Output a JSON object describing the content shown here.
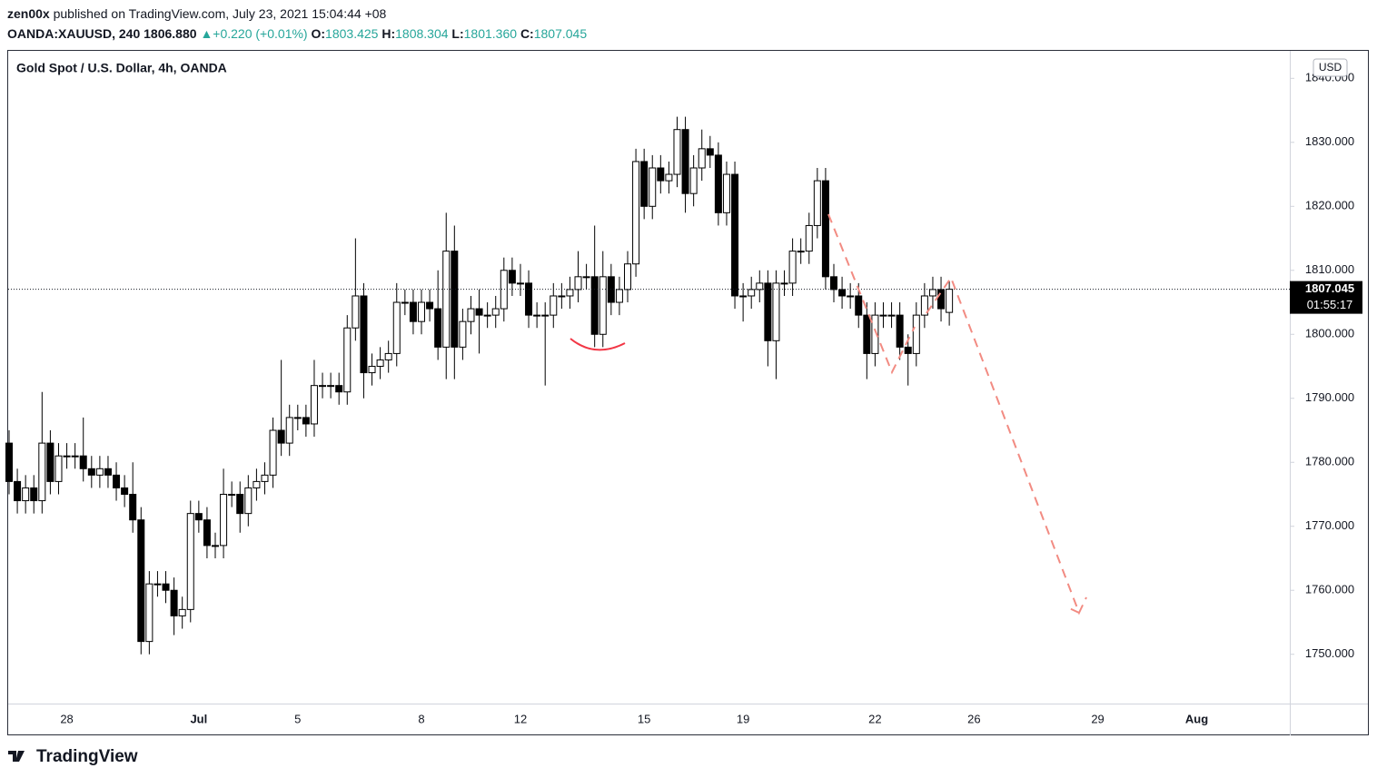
{
  "header": {
    "author": "zen00x",
    "published": "published on TradingView.com, July 23, 2021 15:04:44 +08",
    "symbol": "OANDA:XAUUSD, 240",
    "last": "1806.880",
    "change": "+0.220 (+0.01%)",
    "o_label": "O:",
    "o": "1803.425",
    "h_label": "H:",
    "h": "1808.304",
    "l_label": "L:",
    "l": "1801.360",
    "c_label": "C:",
    "c": "1807.045"
  },
  "footer": {
    "brand": "TradingView"
  },
  "chart_data": {
    "type": "candlestick",
    "title": "Gold Spot / U.S. Dollar, 4h, OANDA",
    "currency": "USD",
    "countdown": "01:55:17",
    "up_color": "#ffffff",
    "down_color": "#000000",
    "wick_color": "#000000",
    "price_line": true,
    "categories": [
      null,
      null,
      null,
      null,
      null,
      null,
      null,
      "28",
      null,
      null,
      null,
      null,
      null,
      null,
      null,
      null,
      null,
      null,
      null,
      null,
      null,
      null,
      null,
      "Jul",
      null,
      null,
      null,
      null,
      null,
      null,
      null,
      null,
      null,
      null,
      null,
      "5",
      null,
      null,
      null,
      null,
      null,
      null,
      null,
      null,
      null,
      null,
      null,
      null,
      null,
      null,
      "8",
      null,
      null,
      null,
      null,
      null,
      null,
      null,
      null,
      null,
      null,
      null,
      "12",
      null,
      null,
      null,
      null,
      null,
      null,
      null,
      null,
      null,
      null,
      null,
      null,
      null,
      null,
      "15",
      null,
      null,
      null,
      null,
      null,
      null,
      null,
      null,
      null,
      null,
      null,
      "19",
      null,
      null,
      null,
      null,
      null,
      null,
      null,
      null,
      null,
      null,
      null,
      null,
      null,
      null,
      null,
      "22",
      null,
      null,
      null,
      null,
      null,
      null,
      null,
      null,
      null,
      null,
      null,
      "26",
      null,
      null,
      null,
      null,
      null,
      null,
      null,
      null,
      null,
      null,
      null,
      null,
      null,
      null,
      "29",
      null,
      null,
      null,
      null,
      null,
      null,
      null,
      null,
      null,
      null,
      null,
      "Aug",
      null,
      null,
      null,
      null,
      null,
      null,
      null,
      null,
      null,
      null
    ],
    "open": [
      1783,
      1777,
      1774,
      1776,
      1774,
      1783,
      1777,
      1781,
      1781,
      1781,
      1779,
      1778,
      1779,
      1778,
      1776,
      1775,
      1771,
      1752,
      1761,
      1761,
      1760,
      1756,
      1757,
      1772,
      1771,
      1767,
      1767,
      1775,
      1775,
      1772,
      1776,
      1777,
      1778,
      1785,
      1783,
      1787,
      1787,
      1786,
      1792,
      1792,
      1792,
      1791,
      1801,
      1806,
      1794,
      1795,
      1796,
      1797,
      1805,
      1805,
      1802,
      1805,
      1804,
      1798,
      1813,
      1798,
      1802,
      1804,
      1803,
      1803,
      1804,
      1810,
      1808,
      1808,
      1803,
      1803,
      1803,
      1806,
      1806,
      1807,
      1809,
      1809,
      1800,
      1809,
      1805,
      1807,
      1811,
      1827,
      1820,
      1826,
      1824,
      1825,
      1832,
      1822,
      1826,
      1829,
      1828,
      1819,
      1825,
      1806,
      1806,
      1807,
      1808,
      1799,
      1808,
      1808,
      1813,
      1813,
      1817,
      1824,
      1809,
      1807,
      1806,
      1806,
      1803,
      1797,
      1803,
      1803,
      1803,
      1798,
      1797,
      1803,
      1806,
      1807,
      1803.425,
      null,
      null,
      null,
      null,
      null,
      null,
      null,
      null,
      null,
      null,
      null,
      null,
      null,
      null,
      null,
      null,
      null,
      null,
      null,
      null,
      null,
      null,
      null,
      null,
      null,
      null,
      null,
      null,
      null,
      null,
      null,
      null,
      null,
      null,
      null,
      null,
      null,
      null,
      null,
      null
    ],
    "high": [
      1785,
      1779,
      1778,
      1778,
      1791,
      1785,
      1783,
      1783,
      1783,
      1787,
      1781,
      1781,
      1781,
      1780,
      1778,
      1780,
      1773,
      1763,
      1763,
      1763,
      1762,
      1759,
      1774,
      1774,
      1773,
      1769,
      1779,
      1777,
      1777,
      1778,
      1779,
      1780,
      1787,
      1796,
      1789,
      1789,
      1789,
      1796,
      1794,
      1794,
      1794,
      1803,
      1815,
      1808,
      1797,
      1798,
      1799,
      1808,
      1807,
      1807,
      1807,
      1807,
      1810,
      1819,
      1817,
      1804,
      1806,
      1807,
      1805,
      1806,
      1812,
      1812,
      1811,
      1810,
      1805,
      1805,
      1808,
      1808,
      1809,
      1813,
      1811,
      1817,
      1813,
      1811,
      1809,
      1813,
      1829,
      1829,
      1828,
      1828,
      1827,
      1834,
      1834,
      1828,
      1832,
      1831,
      1830,
      1827,
      1827,
      1808,
      1809,
      1810,
      1810,
      1810,
      1810,
      1815,
      1815,
      1819,
      1826,
      1826,
      1811,
      1809,
      1808,
      1808,
      1805,
      1805,
      1805,
      1805,
      1805,
      1800,
      1805,
      1808,
      1809,
      1809,
      1808.304,
      null,
      null,
      null,
      null,
      null,
      null,
      null,
      null,
      null,
      null,
      null,
      null,
      null,
      null,
      null,
      null,
      null,
      null,
      null,
      null,
      null,
      null,
      null,
      null,
      null,
      null,
      null,
      null,
      null,
      null,
      null,
      null,
      null,
      null,
      null,
      null,
      null,
      null,
      null,
      null
    ],
    "low": [
      1775,
      1772,
      1772,
      1772,
      1772,
      1775,
      1775,
      1779,
      1779,
      1777,
      1776,
      1776,
      1776,
      1774,
      1773,
      1769,
      1750,
      1750,
      1759,
      1758,
      1753,
      1754,
      1755,
      1769,
      1765,
      1765,
      1765,
      1773,
      1769,
      1770,
      1774,
      1775,
      1776,
      1781,
      1781,
      1785,
      1784,
      1784,
      1790,
      1790,
      1789,
      1789,
      1799,
      1790,
      1792,
      1793,
      1794,
      1795,
      1803,
      1800,
      1800,
      1802,
      1796,
      1793,
      1793,
      1796,
      1800,
      1797,
      1801,
      1801,
      1802,
      1806,
      1806,
      1801,
      1801,
      1792,
      1801,
      1804,
      1804,
      1805,
      1807,
      1798,
      1798,
      1803,
      1803,
      1805,
      1809,
      1818,
      1818,
      1822,
      1822,
      1823,
      1819,
      1820,
      1824,
      1826,
      1817,
      1817,
      1804,
      1802,
      1804,
      1805,
      1795,
      1793,
      1806,
      1806,
      1811,
      1811,
      1815,
      1807,
      1805,
      1804,
      1804,
      1801,
      1793,
      1795,
      1801,
      1801,
      1796,
      1792,
      1795,
      1801,
      1804,
      1802,
      1801.36,
      null,
      null,
      null,
      null,
      null,
      null,
      null,
      null,
      null,
      null,
      null,
      null,
      null,
      null,
      null,
      null,
      null,
      null,
      null,
      null,
      null,
      null,
      null,
      null,
      null,
      null,
      null,
      null,
      null,
      null,
      null,
      null,
      null,
      null,
      null,
      null,
      null,
      null,
      null,
      null
    ],
    "close": [
      1777,
      1774,
      1776,
      1774,
      1783,
      1777,
      1781,
      1781,
      1781,
      1779,
      1778,
      1779,
      1778,
      1776,
      1775,
      1771,
      1752,
      1761,
      1761,
      1760,
      1756,
      1757,
      1772,
      1771,
      1767,
      1767,
      1775,
      1775,
      1772,
      1776,
      1777,
      1778,
      1785,
      1783,
      1787,
      1787,
      1786,
      1792,
      1792,
      1792,
      1791,
      1801,
      1806,
      1794,
      1795,
      1796,
      1797,
      1805,
      1805,
      1802,
      1805,
      1804,
      1798,
      1813,
      1798,
      1802,
      1804,
      1803,
      1803,
      1804,
      1810,
      1808,
      1808,
      1803,
      1803,
      1803,
      1806,
      1806,
      1807,
      1809,
      1809,
      1800,
      1809,
      1805,
      1807,
      1811,
      1827,
      1820,
      1826,
      1824,
      1825,
      1832,
      1822,
      1826,
      1829,
      1828,
      1819,
      1825,
      1806,
      1806,
      1807,
      1808,
      1799,
      1808,
      1808,
      1813,
      1813,
      1817,
      1824,
      1809,
      1807,
      1806,
      1806,
      1803,
      1797,
      1803,
      1803,
      1803,
      1798,
      1797,
      1803,
      1806,
      1807,
      1804,
      1807.045,
      null,
      null,
      null,
      null,
      null,
      null,
      null,
      null,
      null,
      null,
      null,
      null,
      null,
      null,
      null,
      null,
      null,
      null,
      null,
      null,
      null,
      null,
      null,
      null,
      null,
      null,
      null,
      null,
      null,
      null,
      null,
      null,
      null,
      null,
      null,
      null,
      null,
      null,
      null,
      null
    ],
    "ylim": [
      1742.3,
      1844.3
    ],
    "yticks": [
      {
        "value": 1750,
        "label": "1750.000"
      },
      {
        "value": 1760,
        "label": "1760.000"
      },
      {
        "value": 1770,
        "label": "1770.000"
      },
      {
        "value": 1780,
        "label": "1780.000"
      },
      {
        "value": 1790,
        "label": "1790.000"
      },
      {
        "value": 1800,
        "label": "1800.000"
      },
      {
        "value": 1810,
        "label": "1810.000"
      },
      {
        "value": 1820,
        "label": "1820.000"
      },
      {
        "value": 1830,
        "label": "1830.000"
      },
      {
        "value": 1840,
        "label": "1840.000"
      }
    ]
  }
}
